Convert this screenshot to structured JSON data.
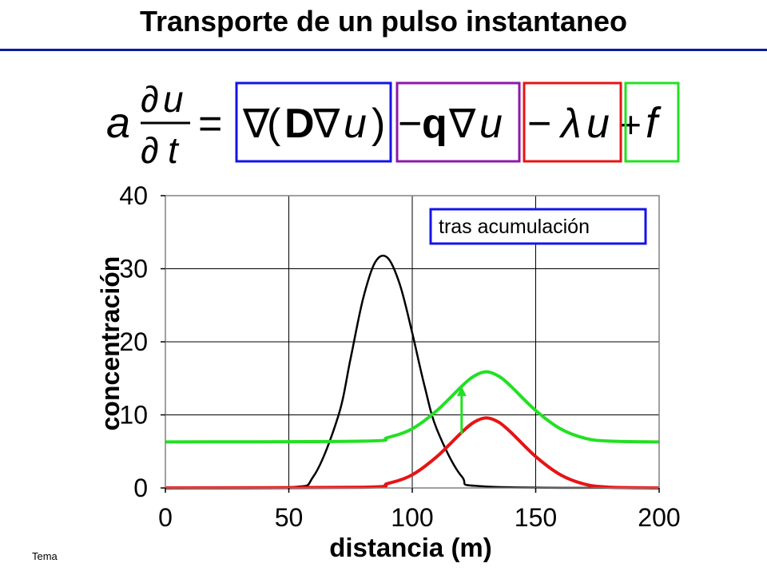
{
  "slide": {
    "title": "Transporte de un pulso instantaneo",
    "footer": "Tema"
  },
  "equation": {
    "lhs_coef": "a",
    "partial": "∂",
    "u": "u",
    "t": "t",
    "equals": "=",
    "nabla": "∇",
    "lparen": "(",
    "rparen": ")",
    "D": "D",
    "minus": "−",
    "q": "q",
    "lambda": "λ",
    "plus": "+",
    "f": "f",
    "box_colors": [
      "#1414e6",
      "#8c1aa8",
      "#e61414",
      "#22e022"
    ]
  },
  "chart_data": {
    "type": "line",
    "xlabel": "distancia (m)",
    "ylabel": "concentración",
    "xlim": [
      0,
      200
    ],
    "ylim": [
      0,
      40
    ],
    "xticks": [
      0,
      50,
      100,
      150,
      200
    ],
    "yticks": [
      0,
      10,
      20,
      30,
      40
    ],
    "grid": true,
    "annotation": "tras acumulación",
    "series": [
      {
        "color": "#000000",
        "x": [
          0,
          50,
          60,
          70,
          75,
          80,
          85,
          90,
          95,
          100,
          105,
          110,
          120,
          130,
          200
        ],
        "y": [
          0,
          0.1,
          1.6,
          9.8,
          17.7,
          25.8,
          30.9,
          31.5,
          27.8,
          21.2,
          13.9,
          8.0,
          1.6,
          0.2,
          0
        ]
      },
      {
        "color": "#e61414",
        "x": [
          0,
          80,
          90,
          100,
          110,
          120,
          125,
          130,
          135,
          140,
          150,
          160,
          170,
          180,
          200
        ],
        "y": [
          0,
          0.1,
          0.6,
          1.8,
          4.3,
          7.6,
          9.0,
          9.6,
          9.0,
          7.6,
          4.3,
          1.8,
          0.5,
          0.1,
          0
        ]
      },
      {
        "color": "#22e022",
        "x": [
          0,
          80,
          90,
          100,
          110,
          120,
          125,
          130,
          135,
          140,
          150,
          160,
          170,
          180,
          200
        ],
        "y": [
          6.3,
          6.4,
          6.9,
          8.1,
          10.6,
          13.9,
          15.3,
          15.9,
          15.3,
          13.9,
          10.6,
          8.1,
          6.8,
          6.4,
          6.3
        ]
      }
    ],
    "arrow": {
      "x": 120,
      "from": 7.4,
      "to": 13.9,
      "color": "#22e022"
    }
  }
}
